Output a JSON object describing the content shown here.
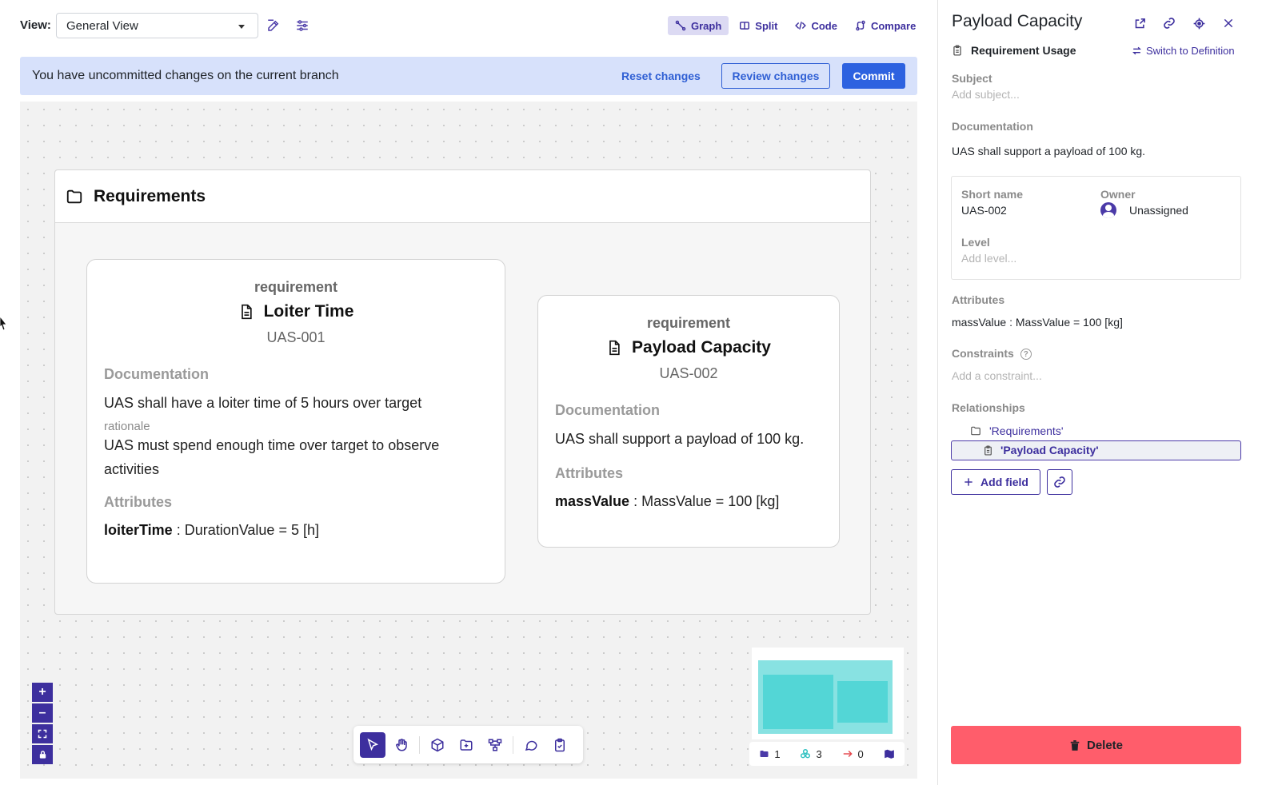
{
  "topbar": {
    "view_label": "View:",
    "view_value": "General View",
    "modes": [
      {
        "label": "Graph",
        "icon": "graph-icon",
        "active": true
      },
      {
        "label": "Split",
        "icon": "split-icon",
        "active": false
      },
      {
        "label": "Code",
        "icon": "code-icon",
        "active": false
      },
      {
        "label": "Compare",
        "icon": "compare-icon",
        "active": false
      }
    ]
  },
  "banner": {
    "message": "You have uncommitted changes on the current branch",
    "reset_label": "Reset changes",
    "review_label": "Review changes",
    "commit_label": "Commit"
  },
  "canvas": {
    "package_title": "Requirements",
    "requirements": [
      {
        "kind": "requirement",
        "name": "Loiter Time",
        "short_id": "UAS-001",
        "doc_label": "Documentation",
        "doc_text": "UAS shall have a loiter time of 5 hours over target",
        "rationale_label": "rationale",
        "rationale_text": "UAS must spend enough time over target to observe activities",
        "attr_label": "Attributes",
        "attr_name": "loiterTime",
        "attr_rest": " : DurationValue = 5 [h]"
      },
      {
        "kind": "requirement",
        "name": "Payload Capacity",
        "short_id": "UAS-002",
        "doc_label": "Documentation",
        "doc_text": "UAS shall support a payload of 100 kg.",
        "attr_label": "Attributes",
        "attr_name": "massValue",
        "attr_rest": " : MassValue = 100 [kg]"
      }
    ],
    "zoom": {
      "in": "+",
      "out": "–"
    },
    "stats": {
      "packages": "1",
      "elements": "3",
      "relations": "0"
    }
  },
  "panel": {
    "title": "Payload Capacity",
    "usage_label": "Requirement Usage",
    "switch_label": "Switch to Definition",
    "subject_label": "Subject",
    "subject_placeholder": "Add subject...",
    "doc_label": "Documentation",
    "doc_text": "UAS shall support a payload of 100 kg.",
    "short_name_label": "Short name",
    "short_name_value": "UAS-002",
    "owner_label": "Owner",
    "owner_value": "Unassigned",
    "level_label": "Level",
    "level_placeholder": "Add level...",
    "attributes_label": "Attributes",
    "attributes_value": "massValue : MassValue = 100 [kg]",
    "constraints_label": "Constraints",
    "constraints_placeholder": "Add a constraint...",
    "relationships_label": "Relationships",
    "relationships": [
      "'Requirements'",
      "'Payload Capacity'"
    ],
    "add_field_label": "Add field",
    "delete_label": "Delete"
  },
  "colors": {
    "accent": "#3d2f9e",
    "banner_bg": "#d7e1fb",
    "commit": "#2d62e0",
    "delete": "#ff5d6b"
  }
}
